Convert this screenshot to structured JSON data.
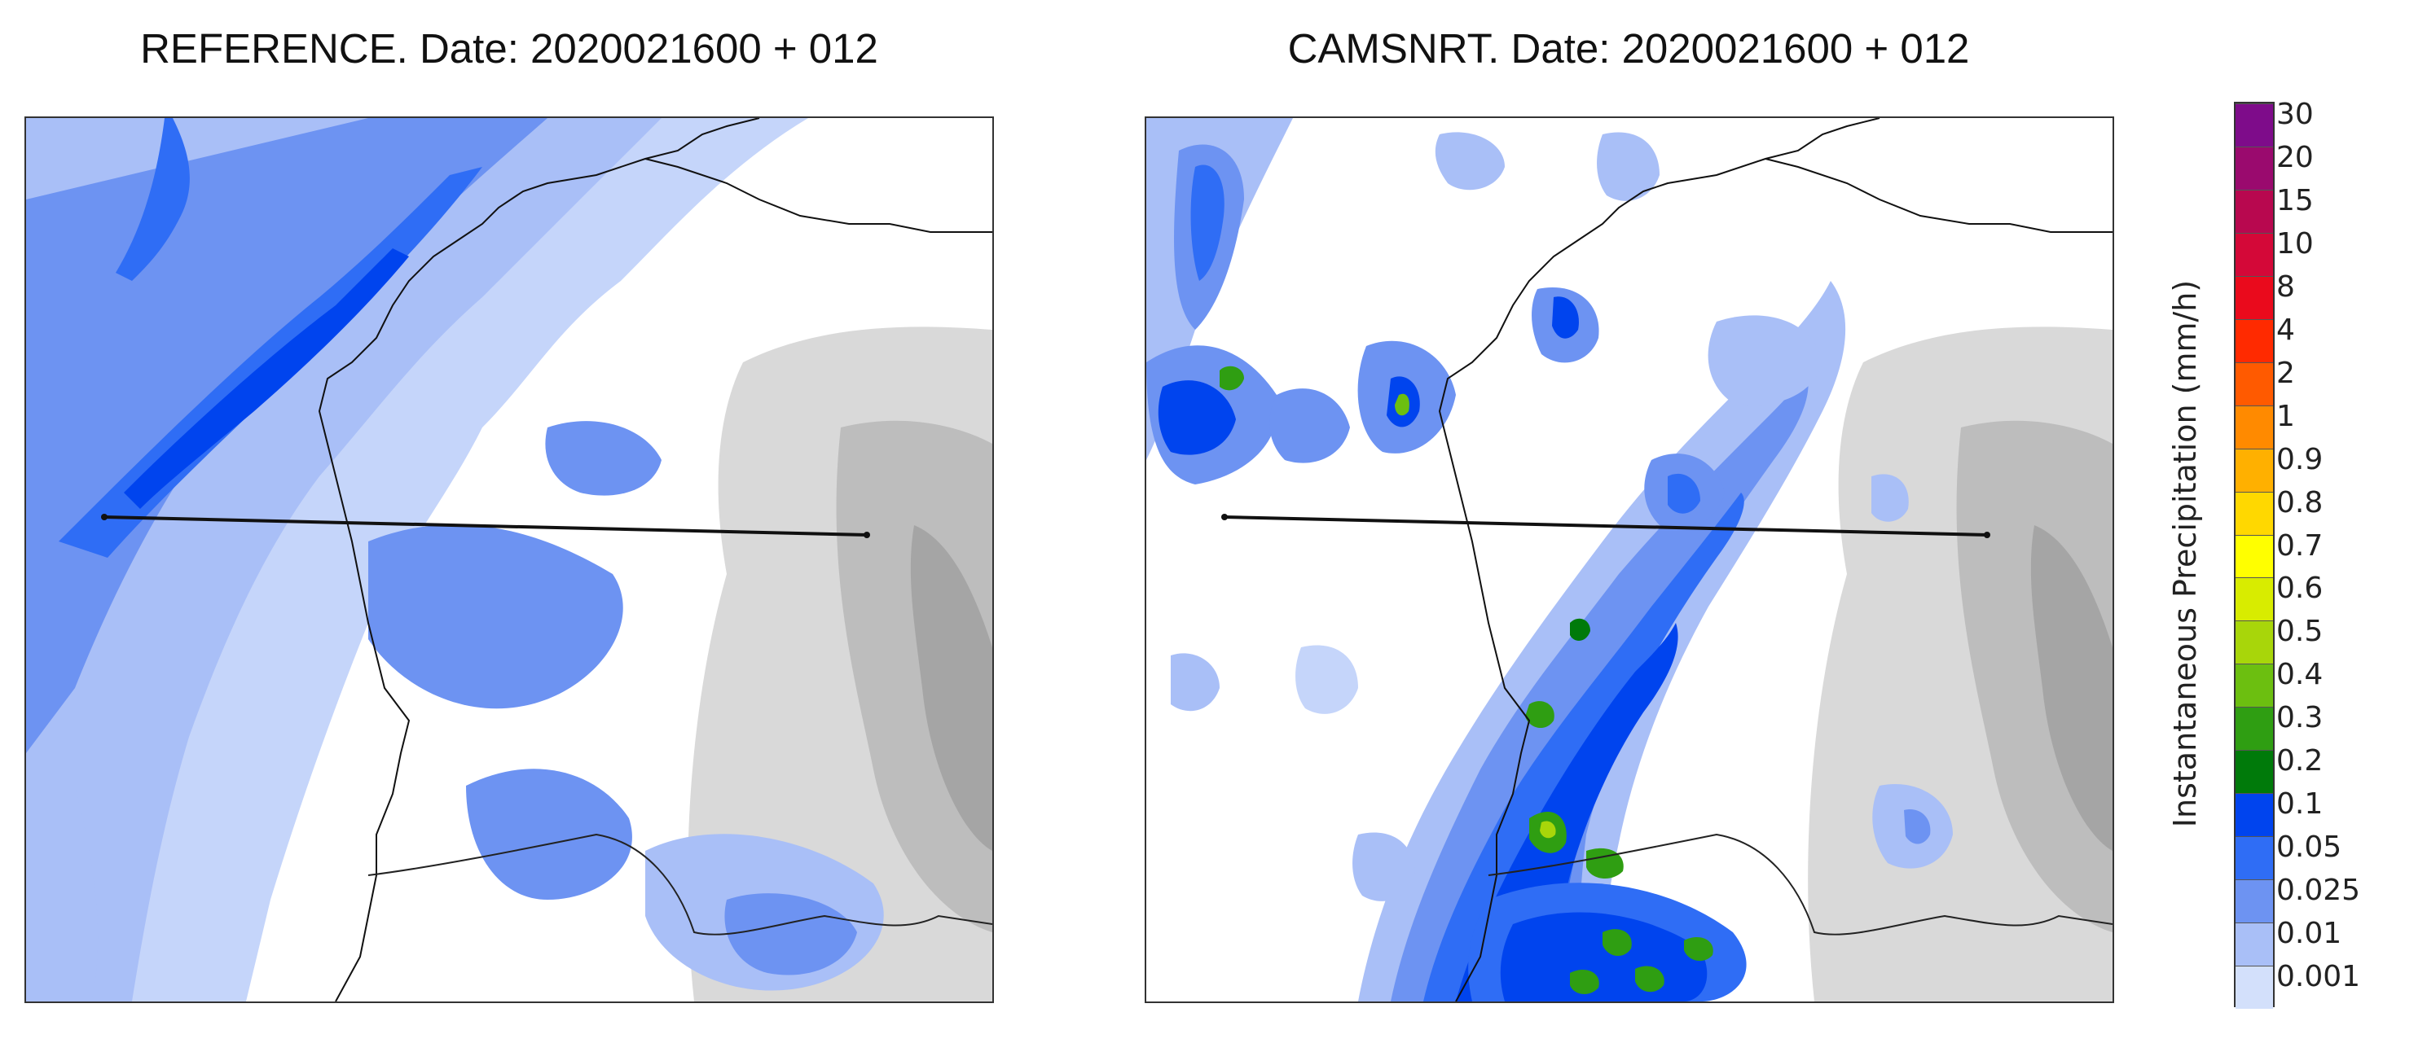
{
  "panels": [
    {
      "title": "REFERENCE. Date: 2020021600 + 012"
    },
    {
      "title": "CAMSNRT. Date: 2020021600 + 012"
    }
  ],
  "colorbar": {
    "label": "Instantaneous Precipitation (mm/h)",
    "ticks": [
      "30",
      "20",
      "15",
      "10",
      "8",
      "4",
      "2",
      "1",
      "0.9",
      "0.8",
      "0.7",
      "0.6",
      "0.5",
      "0.4",
      "0.3",
      "0.2",
      "0.1",
      "0.05",
      "0.025",
      "0.01",
      "0.001"
    ],
    "colors": [
      "#7e0c8a",
      "#9a0a6e",
      "#b8084f",
      "#d40838",
      "#ea0a1c",
      "#ff2a00",
      "#ff5a00",
      "#ff8a00",
      "#ffb000",
      "#ffd800",
      "#ffff00",
      "#d8ec00",
      "#a8d60a",
      "#6cbf10",
      "#2f9e12",
      "#007a0a",
      "#0044ee",
      "#2f6df5",
      "#6d93f2",
      "#a9bff7",
      "#d3e0fb"
    ]
  },
  "colors": {
    "terrain_light": "#e2e2e2",
    "terrain_mid": "#c4c4c4",
    "terrain_dark": "#9a9a9a",
    "coastline": "#111111",
    "transect_line": "#111111"
  }
}
